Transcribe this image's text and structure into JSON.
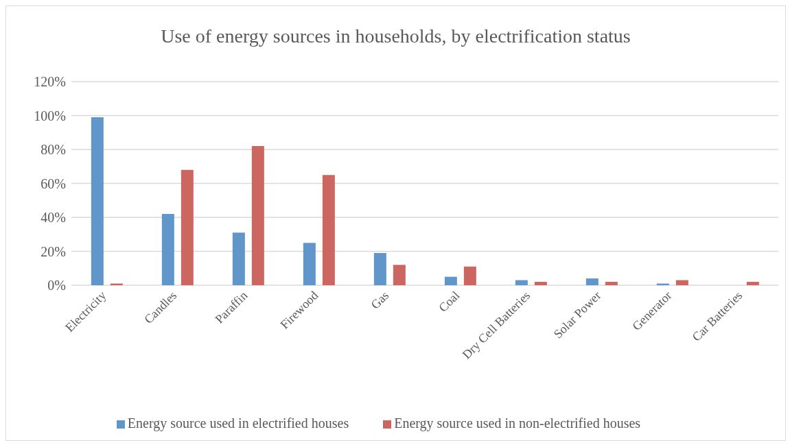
{
  "chart_data": {
    "type": "bar",
    "title": "Use of energy sources in households, by electrification status",
    "categories": [
      "Electricity",
      "Candles",
      "Paraffin",
      "Firewood",
      "Gas",
      "Coal",
      "Dry Cell Batteries",
      "Solar Power",
      "Generator",
      "Car Batteries"
    ],
    "series": [
      {
        "name": "Energy source used in electrified houses",
        "color": "#6096c9",
        "values": [
          99,
          42,
          31,
          25,
          19,
          5,
          3,
          4,
          1,
          0
        ]
      },
      {
        "name": "Energy source used in non-electrified houses",
        "color": "#cb6660",
        "values": [
          1,
          68,
          82,
          65,
          12,
          11,
          2,
          2,
          3,
          2
        ]
      }
    ],
    "ylim": [
      0,
      120
    ],
    "yticks": [
      {
        "value": 0,
        "label": "0%"
      },
      {
        "value": 20,
        "label": "20%"
      },
      {
        "value": 40,
        "label": "40%"
      },
      {
        "value": 60,
        "label": "60%"
      },
      {
        "value": 80,
        "label": "80%"
      },
      {
        "value": 100,
        "label": "100%"
      },
      {
        "value": 120,
        "label": "120%"
      }
    ],
    "grid": "y",
    "legend": "bottom"
  }
}
